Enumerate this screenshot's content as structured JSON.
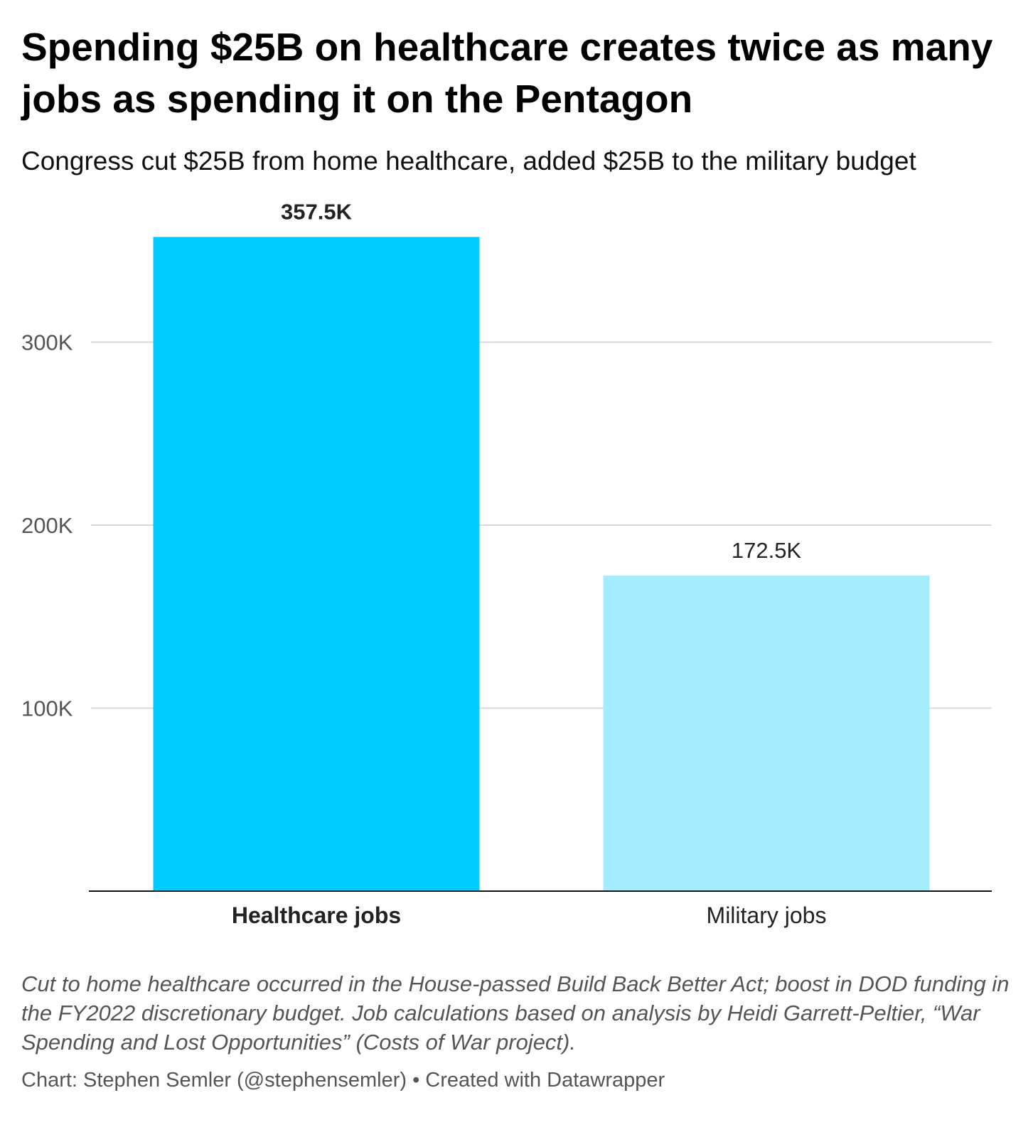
{
  "title": "Spending $25B on healthcare creates twice as many jobs as spending it on the Pentagon",
  "subtitle": "Congress cut $25B from home healthcare, added $25B to the military budget",
  "notes": "Cut to home healthcare occurred in the House-passed Build Back Better Act; boost in DOD funding in the FY2022 discretionary budget. Job calculations based on analysis by Heidi Garrett-Peltier, “War Spending and Lost Opportunities” (Costs of War project).",
  "byline": "Chart: Stephen Semler (@stephensemler) • Created with Datawrapper",
  "chart_data": {
    "type": "bar",
    "categories": [
      "Healthcare jobs",
      "Military jobs"
    ],
    "values": [
      357500,
      172500
    ],
    "value_labels": [
      "357.5K",
      "172.5K"
    ],
    "bar_colors": [
      "#00ccff",
      "#a6ecff"
    ],
    "bold_category": "Healthcare jobs",
    "ylim": [
      0,
      400000
    ],
    "yticks": [
      100000,
      200000,
      300000
    ],
    "ytick_labels": [
      "100K",
      "200K",
      "300K"
    ],
    "grid": true,
    "xlabel": "",
    "ylabel": ""
  }
}
